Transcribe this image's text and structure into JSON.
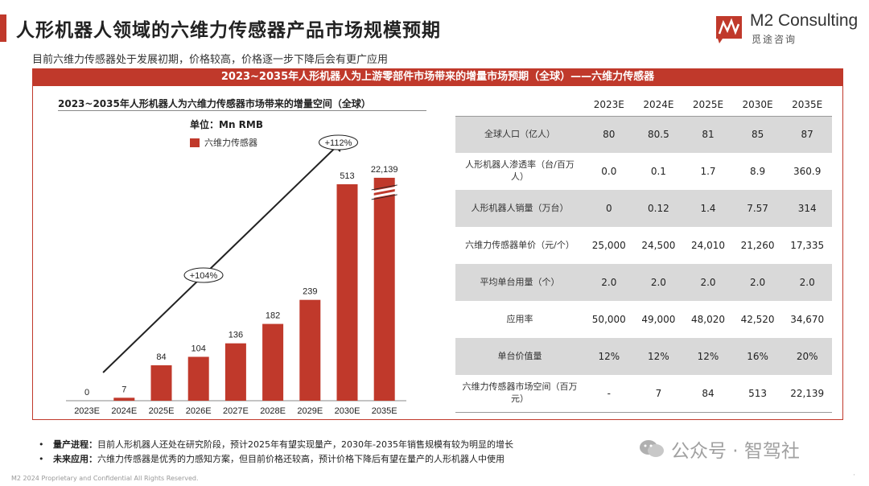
{
  "header": {
    "title": "人形机器人领域的六维力传感器产品市场规模预期",
    "subtitle": "目前六维力传感器处于发展初期，价格较高，价格逐一步下降后会有更广应用",
    "logo_name": "M2 Consulting",
    "logo_sub": "觅途咨询"
  },
  "banner": "2023~2035年人形机器人为上游零部件市场带来的增量市场预期（全球）——六维力传感器",
  "chart": {
    "title": "2023~2035年人形机器人为六维力传感器市场带来的增量空间（全球）",
    "unit": "单位：Mn RMB",
    "legend": "六维力传感器"
  },
  "chart_data": {
    "type": "bar",
    "title": "2023~2035年人形机器人为六维力传感器市场带来的增量空间（全球）",
    "unit": "Mn RMB",
    "categories": [
      "2023E",
      "2024E",
      "2025E",
      "2026E",
      "2027E",
      "2028E",
      "2029E",
      "2030E",
      "2035E"
    ],
    "series": [
      {
        "name": "六维力传感器",
        "values": [
          0,
          7,
          84,
          104,
          136,
          182,
          239,
          513,
          22139
        ]
      }
    ],
    "value_labels": [
      "0",
      "7",
      "84",
      "104",
      "136",
      "182",
      "239",
      "513",
      "22,139"
    ],
    "axis_break_on": "2035E",
    "annotations": [
      {
        "label": "+104%",
        "from": "2023E",
        "to": "2030E"
      },
      {
        "label": "+112%",
        "from": "2030E",
        "to": "2035E"
      }
    ],
    "bar_color": "#c0392b"
  },
  "table": {
    "headers": [
      "",
      "2023E",
      "2024E",
      "2025E",
      "2030E",
      "2035E"
    ],
    "rows": [
      {
        "label": "全球人口（亿人）",
        "values": [
          "80",
          "80.5",
          "81",
          "85",
          "87"
        ],
        "shade": true
      },
      {
        "label": "人形机器人渗透率（台/百万人）",
        "values": [
          "0.0",
          "0.1",
          "1.7",
          "8.9",
          "360.9"
        ],
        "shade": false
      },
      {
        "label": "人形机器人销量（万台）",
        "values": [
          "0",
          "0.12",
          "1.4",
          "7.57",
          "314"
        ],
        "shade": true
      },
      {
        "label": "六维力传感器单价（元/个）",
        "values": [
          "25,000",
          "24,500",
          "24,010",
          "21,260",
          "17,335"
        ],
        "shade": false
      },
      {
        "label": "平均单台用量（个）",
        "values": [
          "2.0",
          "2.0",
          "2.0",
          "2.0",
          "2.0"
        ],
        "shade": true
      },
      {
        "label": "应用率",
        "values": [
          "50,000",
          "49,000",
          "48,020",
          "42,520",
          "34,670"
        ],
        "shade": false
      },
      {
        "label": "单台价值量",
        "values": [
          "12%",
          "12%",
          "12%",
          "16%",
          "20%"
        ],
        "shade": true
      },
      {
        "label": "六维力传感器市场空间（百万元）",
        "values": [
          "-",
          "7",
          "84",
          "513",
          "22,139"
        ],
        "shade": false
      }
    ]
  },
  "notes": [
    {
      "label": "量产进程：",
      "text": "目前人形机器人还处在研究阶段，预计2025年有望实现量产，2030年-2035年销售规模有较为明显的增长"
    },
    {
      "label": "未来应用：",
      "text": "六维力传感器是优秀的力感知方案，但目前价格还较高，预计价格下降后有望在量产的人形机器人中使用"
    }
  ],
  "watermark": "公众号 · 智驾社",
  "footer": "M2 2024 Proprietary and Confidential All Rights Reserved."
}
